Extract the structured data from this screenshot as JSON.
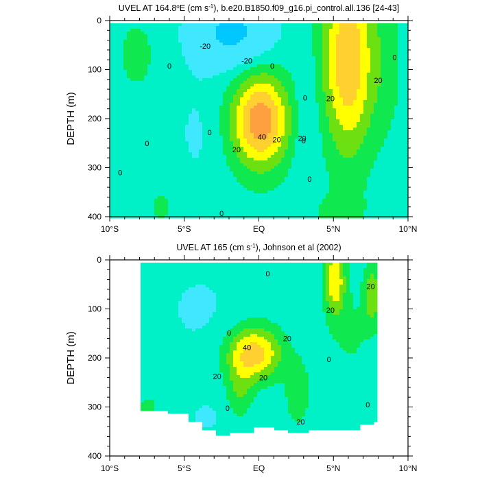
{
  "colors": {
    "lt_-20": "#00C8FF",
    "-20_to_0": "#40E8FF",
    "0_to_10": "#00F0C8",
    "10_to_20": "#10E850",
    "20_to_30": "#6CE010",
    "30_to_40": "#FFFF00",
    "40_to_50": "#FFD030",
    "gt_50": "#FFA040",
    "contour_line": "#000000"
  },
  "chart_data": [
    {
      "type": "heatmap",
      "title_parts": [
        "UVEL AT 164.8",
        "o",
        "E (cm s",
        "-1",
        "), b.e20.B1850.f09_g16.pi_control.all.136 [24-43]"
      ],
      "xlabel": "",
      "ylabel": "DEPTH (m)",
      "xlim": [
        -10,
        10
      ],
      "ylim": [
        0,
        400
      ],
      "y_reversed": true,
      "xticks": [
        "10°S",
        "5°S",
        "EQ",
        "5°N",
        "10°N"
      ],
      "yticks": [
        "0",
        "100",
        "200",
        "300",
        "400"
      ],
      "data_extent": {
        "lat": [
          -10,
          10
        ],
        "depth": [
          5,
          400
        ]
      },
      "contour_labels": [
        "0",
        "0",
        "0",
        "0",
        "0",
        "0",
        "0",
        "0",
        "0",
        "0",
        "-20",
        "-20",
        "20",
        "20",
        "20",
        "20",
        "20",
        "40"
      ],
      "features": [
        {
          "feature": "EUC core (eastward)",
          "lat": 0,
          "depth": 205,
          "max": 58
        },
        {
          "feature": "NECC core (eastward)",
          "lat": 6,
          "depth": 70,
          "max": 50
        },
        {
          "feature": "westward surface flow",
          "lat": -2,
          "depth": 40,
          "min": -25
        }
      ]
    },
    {
      "type": "heatmap",
      "title_parts": [
        "UVEL AT 165 (cm s",
        "-1",
        "), Johnson et al (2002)"
      ],
      "xlabel": "",
      "ylabel": "DEPTH (m)",
      "xlim": [
        -10,
        10
      ],
      "ylim": [
        0,
        400
      ],
      "y_reversed": true,
      "xticks": [
        "10°S",
        "5°S",
        "EQ",
        "5°N",
        "10°N"
      ],
      "yticks": [
        "0",
        "100",
        "200",
        "300",
        "400"
      ],
      "data_extent": {
        "lat": [
          -8,
          8
        ],
        "depth": [
          5,
          345
        ]
      },
      "contour_labels": [
        "0",
        "0",
        "0",
        "0",
        "0",
        "20",
        "20",
        "20",
        "20",
        "20",
        "20",
        "40"
      ],
      "features": [
        {
          "feature": "EUC core (eastward)",
          "lat": 0,
          "depth": 190,
          "max": 44
        },
        {
          "feature": "NECC core (eastward)",
          "lat": 5,
          "depth": 40,
          "max": 35
        },
        {
          "feature": "NECC secondary (eastward)",
          "lat": 7.5,
          "depth": 70,
          "max": 25
        }
      ]
    }
  ]
}
